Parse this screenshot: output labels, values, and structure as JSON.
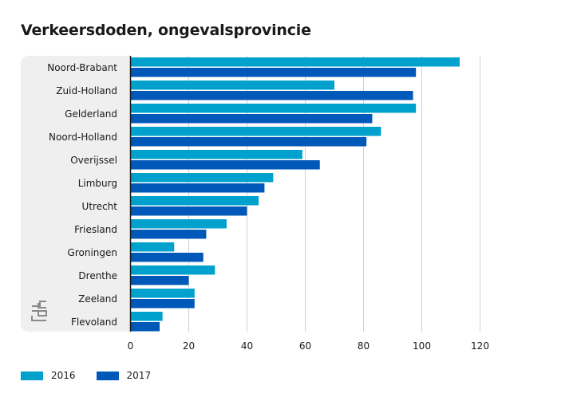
{
  "title": "Verkeersdoden, ongevalsprovincie",
  "chart_data": {
    "type": "bar",
    "orientation": "horizontal",
    "title": "Verkeersdoden, ongevalsprovincie",
    "categories": [
      "Noord-Brabant",
      "Zuid-Holland",
      "Gelderland",
      "Noord-Holland",
      "Overijssel",
      "Limburg",
      "Utrecht",
      "Friesland",
      "Groningen",
      "Drenthe",
      "Zeeland",
      "Flevoland"
    ],
    "series": [
      {
        "name": "2016",
        "color": "#00a1cd",
        "values": [
          113,
          70,
          98,
          86,
          59,
          49,
          44,
          33,
          15,
          29,
          22,
          11
        ]
      },
      {
        "name": "2017",
        "color": "#0058b8",
        "values": [
          98,
          97,
          83,
          81,
          65,
          46,
          40,
          26,
          25,
          20,
          22,
          10
        ]
      }
    ],
    "xlim": [
      0,
      120
    ],
    "xticks": [
      "0",
      "20",
      "40",
      "60",
      "80",
      "100",
      "120"
    ],
    "grid": true,
    "legend_position": "bottom-left"
  },
  "logo": {
    "text": "cbs",
    "icon": "cbs-logo-icon"
  }
}
